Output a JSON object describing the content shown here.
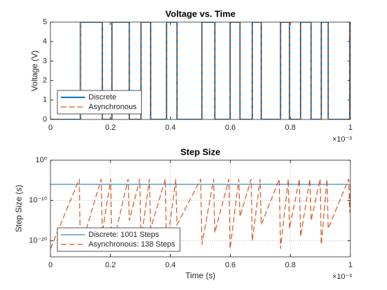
{
  "chart_data": [
    {
      "type": "line",
      "title": "Voltage vs. Time",
      "ylabel": "Voltage (V)",
      "x_multiplier": "×10⁻³",
      "xlim": [
        0,
        1
      ],
      "xticks": [
        0,
        0.2,
        0.4,
        0.6,
        0.8,
        1
      ],
      "ylim": [
        0,
        5
      ],
      "yticks": [
        0,
        1,
        2,
        3,
        4,
        5
      ],
      "grid": false,
      "legend": "southwest",
      "x": [
        0,
        0.1,
        0.1,
        0.173,
        0.173,
        0.205,
        0.205,
        0.263,
        0.263,
        0.302,
        0.302,
        0.334,
        0.334,
        0.387,
        0.387,
        0.422,
        0.422,
        0.505,
        0.505,
        0.548,
        0.548,
        0.599,
        0.599,
        0.632,
        0.632,
        0.673,
        0.673,
        0.703,
        0.703,
        0.767,
        0.767,
        0.797,
        0.797,
        0.834,
        0.834,
        0.869,
        0.869,
        0.903,
        0.903,
        0.926,
        0.926,
        0.998,
        0.998,
        1
      ],
      "series": [
        {
          "name": "Discrete",
          "color": "#0072bd",
          "dash": "none",
          "width": 2,
          "values": [
            0,
            0,
            5,
            5,
            0,
            0,
            5,
            5,
            0,
            0,
            5,
            5,
            0,
            0,
            5,
            5,
            0,
            0,
            5,
            5,
            0,
            0,
            5,
            5,
            0,
            0,
            5,
            5,
            0,
            0,
            5,
            5,
            0,
            0,
            5,
            5,
            0,
            0,
            5,
            5,
            0,
            0,
            5,
            5
          ]
        },
        {
          "name": "Asynchronous",
          "color": "#d95319",
          "dash": "8,4",
          "width": 1.2,
          "values": [
            0,
            0,
            5,
            5,
            0,
            0,
            5,
            5,
            0,
            0,
            5,
            5,
            0,
            0,
            5,
            5,
            0,
            0,
            5,
            5,
            0,
            0,
            5,
            5,
            0,
            0,
            5,
            5,
            0,
            0,
            5,
            5,
            0,
            0,
            5,
            5,
            0,
            0,
            5,
            5,
            0,
            0,
            5,
            5
          ]
        }
      ]
    },
    {
      "type": "line",
      "title": "Step Size",
      "xlabel": "Time (s)",
      "ylabel": "Step Size (s)",
      "x_multiplier": "×10⁻³",
      "xlim": [
        0,
        1
      ],
      "xticks": [
        0,
        0.2,
        0.4,
        0.6,
        0.8,
        1
      ],
      "yscale": "log",
      "ylim": [
        1e-24,
        1
      ],
      "yticks": [
        {
          "value": 1e-20,
          "label": "10⁻²⁰"
        },
        {
          "value": 1e-10,
          "label": "10⁻¹⁰"
        },
        {
          "value": 1,
          "label": "10⁰"
        }
      ],
      "grid": true,
      "legend": "southwest",
      "series": [
        {
          "name": "Discrete: 1001 Steps",
          "color": "#0072bd",
          "dash": "none",
          "width": 1,
          "x": [
            0,
            1
          ],
          "values": [
            1e-06,
            1e-06
          ]
        },
        {
          "name": "Asynchronous: 138 Steps",
          "color": "#d95319",
          "dash": "8,4",
          "width": 1.2,
          "x": [
            0,
            0.096,
            0.1,
            0.169,
            0.173,
            0.201,
            0.205,
            0.259,
            0.263,
            0.298,
            0.302,
            0.33,
            0.334,
            0.383,
            0.387,
            0.418,
            0.422,
            0.501,
            0.505,
            0.544,
            0.548,
            0.595,
            0.599,
            0.628,
            0.632,
            0.669,
            0.673,
            0.699,
            0.703,
            0.763,
            0.767,
            0.793,
            0.797,
            0.83,
            0.834,
            0.865,
            0.869,
            0.899,
            0.903,
            0.922,
            0.926,
            0.994,
            0.998,
            1
          ],
          "values": [
            1e-22,
            2e-05,
            1e-22,
            2e-05,
            1e-18,
            2e-05,
            1e-22,
            2e-05,
            1e-15,
            2e-05,
            1e-20,
            2e-05,
            1e-17,
            2e-05,
            1e-22,
            2e-05,
            1e-16,
            2e-05,
            1e-21,
            2e-05,
            1e-18,
            2e-05,
            1e-22,
            2e-05,
            1e-14,
            2e-05,
            1e-20,
            2e-05,
            1e-16,
            2e-05,
            1e-22,
            2e-05,
            1e-17,
            2e-05,
            1e-19,
            2e-05,
            1e-15,
            2e-05,
            1e-21,
            2e-05,
            1e-17,
            2e-05,
            1e-13,
            2e-05
          ]
        }
      ]
    }
  ]
}
